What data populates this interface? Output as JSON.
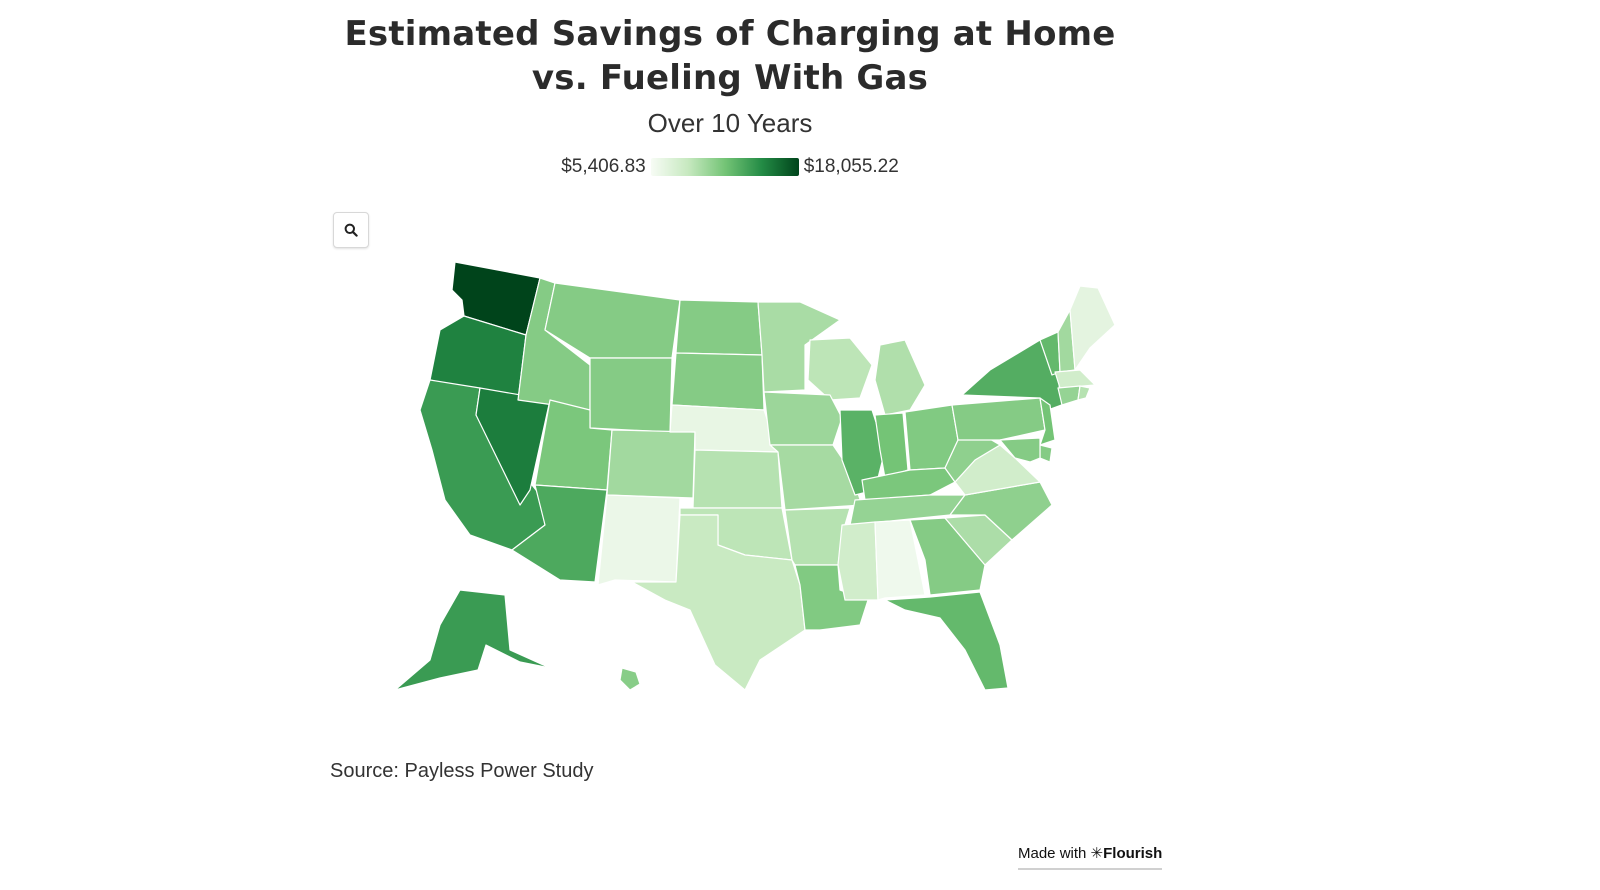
{
  "title": "Estimated Savings of Charging at Home vs. Fueling With Gas",
  "subtitle": "Over 10 Years",
  "legend": {
    "min_label": "$5,406.83",
    "max_label": "$18,055.22",
    "min_value": 5406.83,
    "max_value": 18055.22,
    "colors": [
      "#f7fcf5",
      "#c7e9c0",
      "#74c476",
      "#238b45",
      "#00441b"
    ]
  },
  "zoom_icon": "search-icon",
  "source": "Source: Payless Power Study",
  "credit": {
    "prefix": "Made with ",
    "brand": "Flourish",
    "icon": "asterisk-icon"
  },
  "map_data": {
    "metric": "estimated savings over 10 years (USD)",
    "shading": {
      "WA": 1.0,
      "OR": 0.78,
      "NV": 0.8,
      "CA": 0.68,
      "AZ": 0.62,
      "AK": 0.68,
      "NY": 0.6,
      "VT": 0.55,
      "IL": 0.58,
      "FL": 0.55,
      "NH": 0.36,
      "ME": 0.1,
      "ID": 0.45,
      "MT": 0.45,
      "WY": 0.45,
      "ND": 0.45,
      "SD": 0.45,
      "UT": 0.48,
      "CO": 0.36,
      "NE": 0.08,
      "KS": 0.3,
      "OK": 0.28,
      "TX": 0.24,
      "NM": 0.06,
      "MN": 0.34,
      "WI": 0.28,
      "MI": 0.32,
      "IA": 0.38,
      "MO": 0.35,
      "AR": 0.3,
      "LA": 0.46,
      "MS": 0.2,
      "AL": 0.04,
      "GA": 0.45,
      "SC": 0.33,
      "NC": 0.42,
      "TN": 0.4,
      "KY": 0.48,
      "IN": 0.5,
      "OH": 0.46,
      "WV": 0.42,
      "VA": 0.2,
      "PA": 0.45,
      "NJ": 0.5,
      "MD": 0.45,
      "DE": 0.45,
      "MA": 0.2,
      "CT": 0.4,
      "RI": 0.3,
      "HI": 0.44
    }
  }
}
